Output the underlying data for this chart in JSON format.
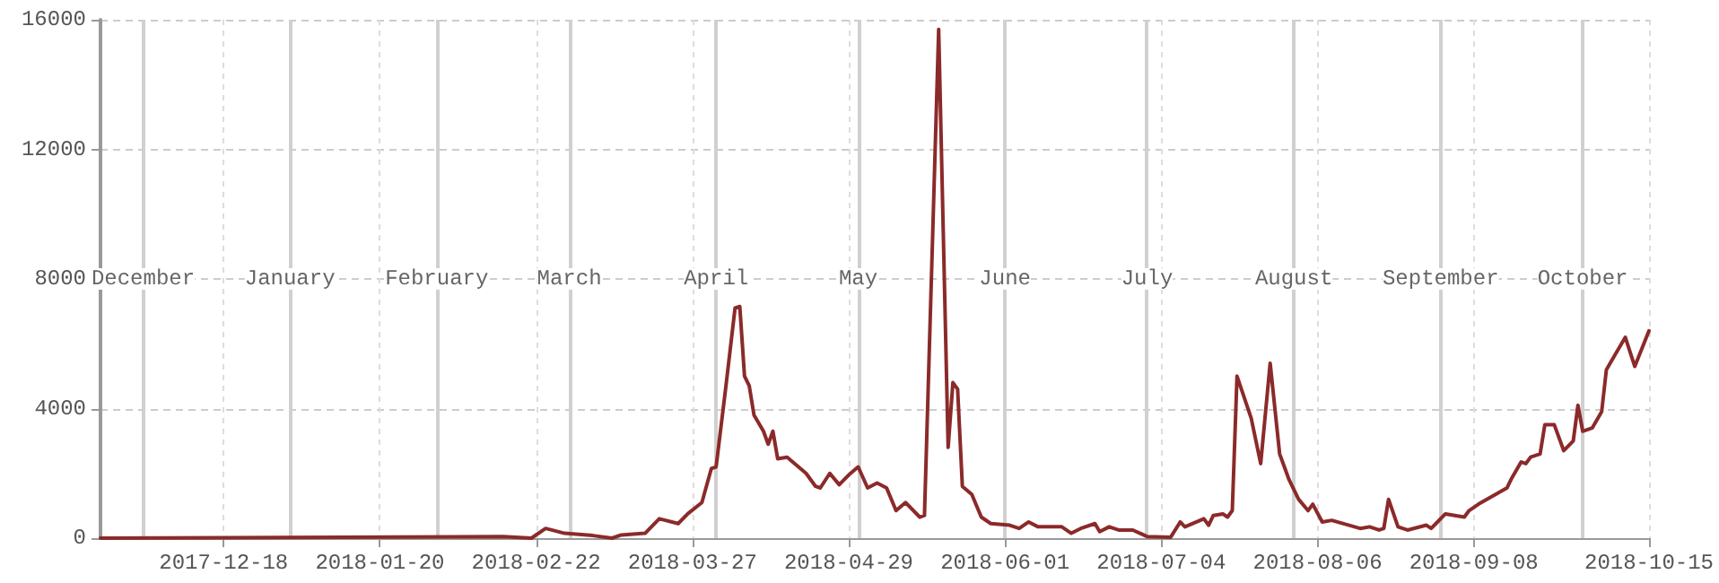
{
  "chart_data": {
    "type": "line",
    "x": [
      "2017-11-22",
      "2018-02-15",
      "2018-02-21",
      "2018-02-24",
      "2018-02-28",
      "2018-03-06",
      "2018-03-10",
      "2018-03-12",
      "2018-03-17",
      "2018-03-20",
      "2018-03-24",
      "2018-03-26",
      "2018-03-29",
      "2018-03-31",
      "2018-04-01",
      "2018-04-03",
      "2018-04-05",
      "2018-04-06",
      "2018-04-07",
      "2018-04-08",
      "2018-04-09",
      "2018-04-11",
      "2018-04-12",
      "2018-04-13",
      "2018-04-14",
      "2018-04-16",
      "2018-04-18",
      "2018-04-20",
      "2018-04-22",
      "2018-04-23",
      "2018-04-25",
      "2018-04-27",
      "2018-04-29",
      "2018-05-01",
      "2018-05-03",
      "2018-05-05",
      "2018-05-07",
      "2018-05-09",
      "2018-05-11",
      "2018-05-14",
      "2018-05-15",
      "2018-05-18",
      "2018-05-20",
      "2018-05-21",
      "2018-05-22",
      "2018-05-23",
      "2018-05-25",
      "2018-05-27",
      "2018-05-29",
      "2018-06-02",
      "2018-06-04",
      "2018-06-06",
      "2018-06-08",
      "2018-06-13",
      "2018-06-15",
      "2018-06-17",
      "2018-06-20",
      "2018-06-21",
      "2018-06-23",
      "2018-06-25",
      "2018-06-28",
      "2018-07-01",
      "2018-07-06",
      "2018-07-08",
      "2018-07-09",
      "2018-07-13",
      "2018-07-14",
      "2018-07-15",
      "2018-07-17",
      "2018-07-18",
      "2018-07-19",
      "2018-07-20",
      "2018-07-23",
      "2018-07-25",
      "2018-07-27",
      "2018-07-29",
      "2018-07-31",
      "2018-08-02",
      "2018-08-04",
      "2018-08-05",
      "2018-08-07",
      "2018-08-09",
      "2018-08-15",
      "2018-08-17",
      "2018-08-19",
      "2018-08-20",
      "2018-08-21",
      "2018-08-23",
      "2018-08-25",
      "2018-08-29",
      "2018-08-30",
      "2018-08-31",
      "2018-09-02",
      "2018-09-04",
      "2018-09-06",
      "2018-09-07",
      "2018-09-09",
      "2018-09-12",
      "2018-09-15",
      "2018-09-16",
      "2018-09-18",
      "2018-09-19",
      "2018-09-20",
      "2018-09-22",
      "2018-09-23",
      "2018-09-25",
      "2018-09-27",
      "2018-09-29",
      "2018-09-30",
      "2018-10-01",
      "2018-10-03",
      "2018-10-05",
      "2018-10-06",
      "2018-10-08",
      "2018-10-10",
      "2018-10-12",
      "2018-10-15"
    ],
    "series": [
      {
        "color": "#8b2a2a",
        "values": [
          0,
          50,
          0,
          300,
          150,
          80,
          0,
          100,
          150,
          600,
          450,
          750,
          1100,
          2150,
          2200,
          4600,
          7100,
          7150,
          5000,
          4700,
          3800,
          3300,
          2900,
          3300,
          2450,
          2500,
          2250,
          2000,
          1600,
          1550,
          2000,
          1650,
          1950,
          2200,
          1550,
          1700,
          1550,
          850,
          1100,
          650,
          700,
          15700,
          2800,
          4800,
          4600,
          1600,
          1350,
          650,
          450,
          400,
          300,
          500,
          350,
          350,
          150,
          300,
          450,
          200,
          350,
          250,
          250,
          50,
          30,
          500,
          350,
          600,
          400,
          700,
          750,
          650,
          850,
          5000,
          3700,
          2300,
          5400,
          2600,
          1800,
          1200,
          850,
          1050,
          500,
          550,
          300,
          350,
          250,
          300,
          1200,
          350,
          250,
          400,
          300,
          450,
          750,
          700,
          650,
          850,
          1050,
          1300,
          1550,
          1850,
          2350,
          2300,
          2500,
          2600,
          3500,
          3500,
          2700,
          3000,
          4100,
          3300,
          3400,
          3900,
          5200,
          5700,
          6200,
          5300,
          6400
        ]
      }
    ],
    "xlim": [
      "2017-11-22",
      "2018-10-15"
    ],
    "xticks": [
      "2017-12-18",
      "2018-01-20",
      "2018-02-22",
      "2018-03-27",
      "2018-04-29",
      "2018-06-01",
      "2018-07-04",
      "2018-08-06",
      "2018-09-08",
      "2018-10-15"
    ],
    "ylim": [
      0,
      16000
    ],
    "yticks": [
      0,
      4000,
      8000,
      12000,
      16000
    ],
    "grid": true,
    "line_style": "solid",
    "marker": "none",
    "ref_lines": [
      {
        "axis": "x",
        "value": "2017-12-01",
        "label": "December",
        "color": "#d0d0d0"
      },
      {
        "axis": "x",
        "value": "2018-01-01",
        "label": "January",
        "color": "#d0d0d0"
      },
      {
        "axis": "x",
        "value": "2018-02-01",
        "label": "February",
        "color": "#d0d0d0"
      },
      {
        "axis": "x",
        "value": "2018-03-01",
        "label": "March",
        "color": "#d0d0d0"
      },
      {
        "axis": "x",
        "value": "2018-04-01",
        "label": "April",
        "color": "#d0d0d0"
      },
      {
        "axis": "x",
        "value": "2018-05-01",
        "label": "May",
        "color": "#d0d0d0"
      },
      {
        "axis": "x",
        "value": "2018-06-01",
        "label": "June",
        "color": "#d0d0d0"
      },
      {
        "axis": "x",
        "value": "2018-07-01",
        "label": "July",
        "color": "#d0d0d0"
      },
      {
        "axis": "x",
        "value": "2018-08-01",
        "label": "August",
        "color": "#d0d0d0"
      },
      {
        "axis": "x",
        "value": "2018-09-01",
        "label": "September",
        "color": "#d0d0d0"
      },
      {
        "axis": "x",
        "value": "2018-10-01",
        "label": "October",
        "color": "#d0d0d0"
      }
    ]
  }
}
